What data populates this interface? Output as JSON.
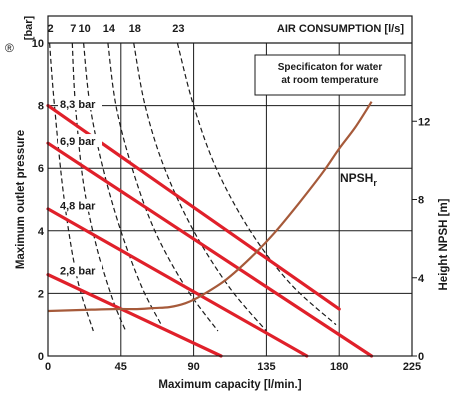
{
  "chart_data": {
    "type": "line",
    "registered_mark": "®",
    "xlabel": "Maximum capacity [l/min.]",
    "ylabel": "Maximum outlet pressure",
    "y_unit": "[bar]",
    "y2label": "Height NPSH [m]",
    "top_axis_label": "AIR CONSUMPTION [l/s]",
    "note_lines": [
      "Specificaton for water",
      "at room temperature"
    ],
    "xlim": [
      0,
      225
    ],
    "ylim": [
      0,
      10
    ],
    "y2lim": [
      0,
      16
    ],
    "x_ticks": [
      0,
      45,
      90,
      135,
      180,
      225
    ],
    "y_ticks": [
      0,
      2,
      4,
      6,
      8,
      10
    ],
    "y2_ticks": [
      0,
      4,
      8,
      12
    ],
    "grid": true,
    "pressure_series": [
      {
        "name": "8,3 bar",
        "x": [
          0,
          180
        ],
        "y": [
          8.0,
          1.5
        ]
      },
      {
        "name": "6,9 bar",
        "x": [
          0,
          200
        ],
        "y": [
          6.8,
          0.0
        ]
      },
      {
        "name": "4,8 bar",
        "x": [
          0,
          160
        ],
        "y": [
          4.7,
          0.0
        ]
      },
      {
        "name": "2,8 bar",
        "x": [
          0,
          107
        ],
        "y": [
          2.6,
          0.0
        ]
      }
    ],
    "npsh_series": {
      "name": "NPSH",
      "name_subscript": "r",
      "x": [
        0,
        20,
        40,
        55,
        65,
        75,
        85,
        95,
        110,
        125,
        140,
        155,
        170,
        180,
        190,
        200
      ],
      "y": [
        2.3,
        2.35,
        2.4,
        2.4,
        2.45,
        2.5,
        2.7,
        3.1,
        3.9,
        5.0,
        6.3,
        7.8,
        9.4,
        10.6,
        11.7,
        13.0
      ]
    },
    "air_consumption_curves": [
      {
        "value": "2",
        "x": [
          1,
          4,
          10,
          18,
          28
        ],
        "y": [
          10,
          8,
          5,
          2.5,
          0.8
        ]
      },
      {
        "value": "7",
        "x": [
          15,
          17,
          22,
          30,
          40,
          48
        ],
        "y": [
          10,
          8,
          5.5,
          3.5,
          1.8,
          0.8
        ]
      },
      {
        "value": "10",
        "x": [
          22,
          26,
          34,
          45,
          58,
          70
        ],
        "y": [
          10,
          8,
          6,
          4,
          2.2,
          1
        ]
      },
      {
        "value": "14",
        "x": [
          37,
          42,
          52,
          66,
          85,
          105
        ],
        "y": [
          10,
          8,
          6,
          4,
          2.2,
          0.8
        ]
      },
      {
        "value": "18",
        "x": [
          53,
          60,
          72,
          90,
          112,
          135
        ],
        "y": [
          10,
          8,
          6,
          4,
          2.2,
          0.8
        ]
      },
      {
        "value": "23",
        "x": [
          80,
          90,
          104,
          125,
          150,
          178
        ],
        "y": [
          10,
          8,
          6,
          4,
          2.3,
          1
        ]
      }
    ],
    "colors": {
      "pressure_lines": "#e0202a",
      "npsh_line": "#a65a3a",
      "air_curves": "#1a1a1a",
      "grid": "#1a1a1a",
      "text": "#1a1a1a"
    }
  }
}
